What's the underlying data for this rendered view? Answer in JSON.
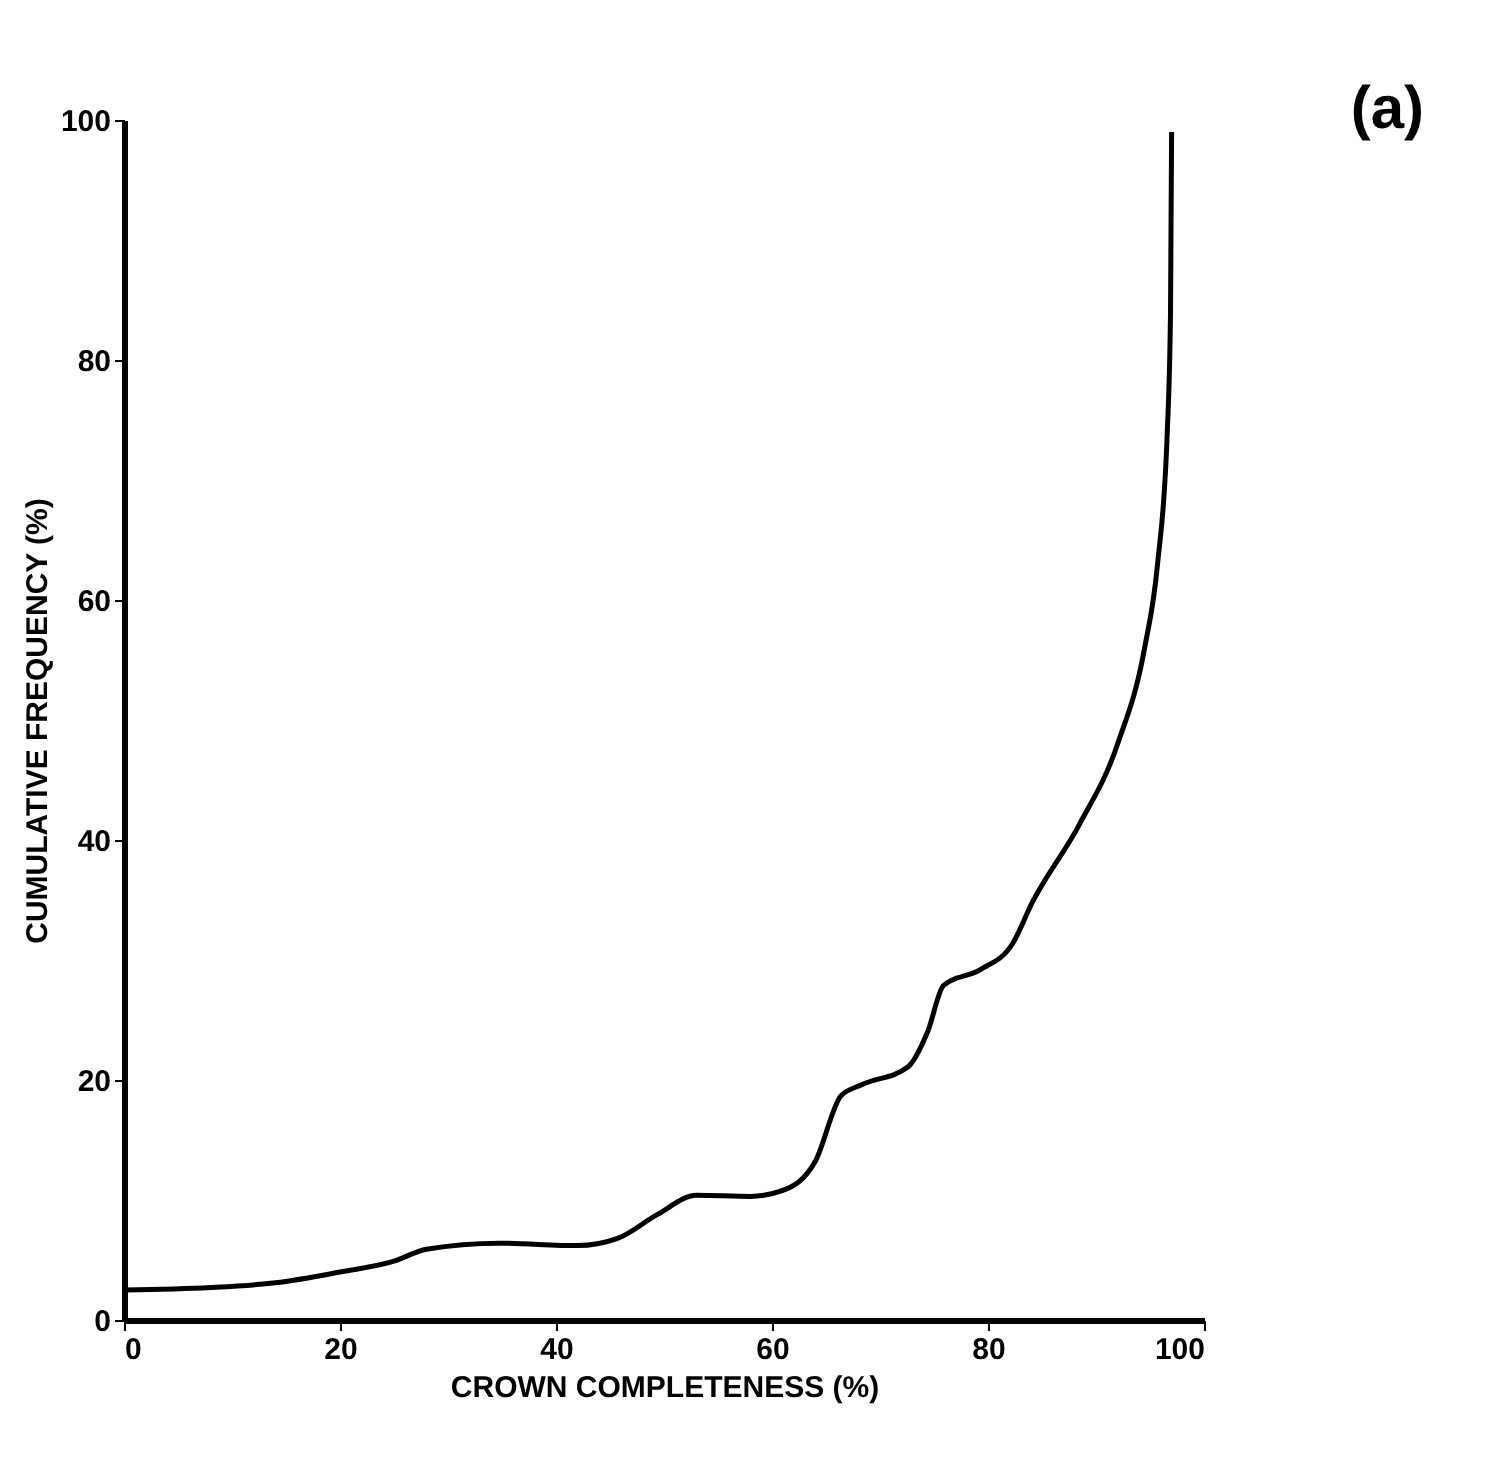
{
  "chart_data": {
    "type": "line",
    "xlabel": "CROWN COMPLETENESS (%)",
    "ylabel": "CUMULATIVE FREQUENCY (%)",
    "annotations": [
      "(a)"
    ],
    "x": [
      0,
      8,
      14,
      20,
      25,
      28,
      34.7,
      42,
      45.7,
      49.4,
      53,
      58,
      61,
      64,
      66.4,
      68.3,
      72.6,
      74.4,
      75.9,
      79.3,
      82.3,
      84.1,
      88.4,
      92,
      94.5,
      95.7,
      96.6,
      96.9,
      97
    ],
    "series": [
      {
        "color": "#000000",
        "values": [
          2.5,
          2.7,
          3.1,
          4.0,
          4.9,
          5.9,
          6.4,
          6.2,
          6.8,
          8.8,
          10.4,
          10.3,
          10.8,
          13.2,
          18.7,
          19.6,
          21.1,
          24,
          27.9,
          29.2,
          31.4,
          34.8,
          41.2,
          48,
          56,
          63,
          74,
          84,
          99
        ]
      }
    ],
    "xlim": [
      0,
      100
    ],
    "ylim": [
      0,
      100
    ],
    "xticks": [
      0,
      20,
      40,
      60,
      80,
      100
    ],
    "yticks": [
      0,
      20,
      40,
      60,
      80,
      100
    ],
    "grid": false,
    "legend": false,
    "marker": "none",
    "line_style": "solid"
  }
}
